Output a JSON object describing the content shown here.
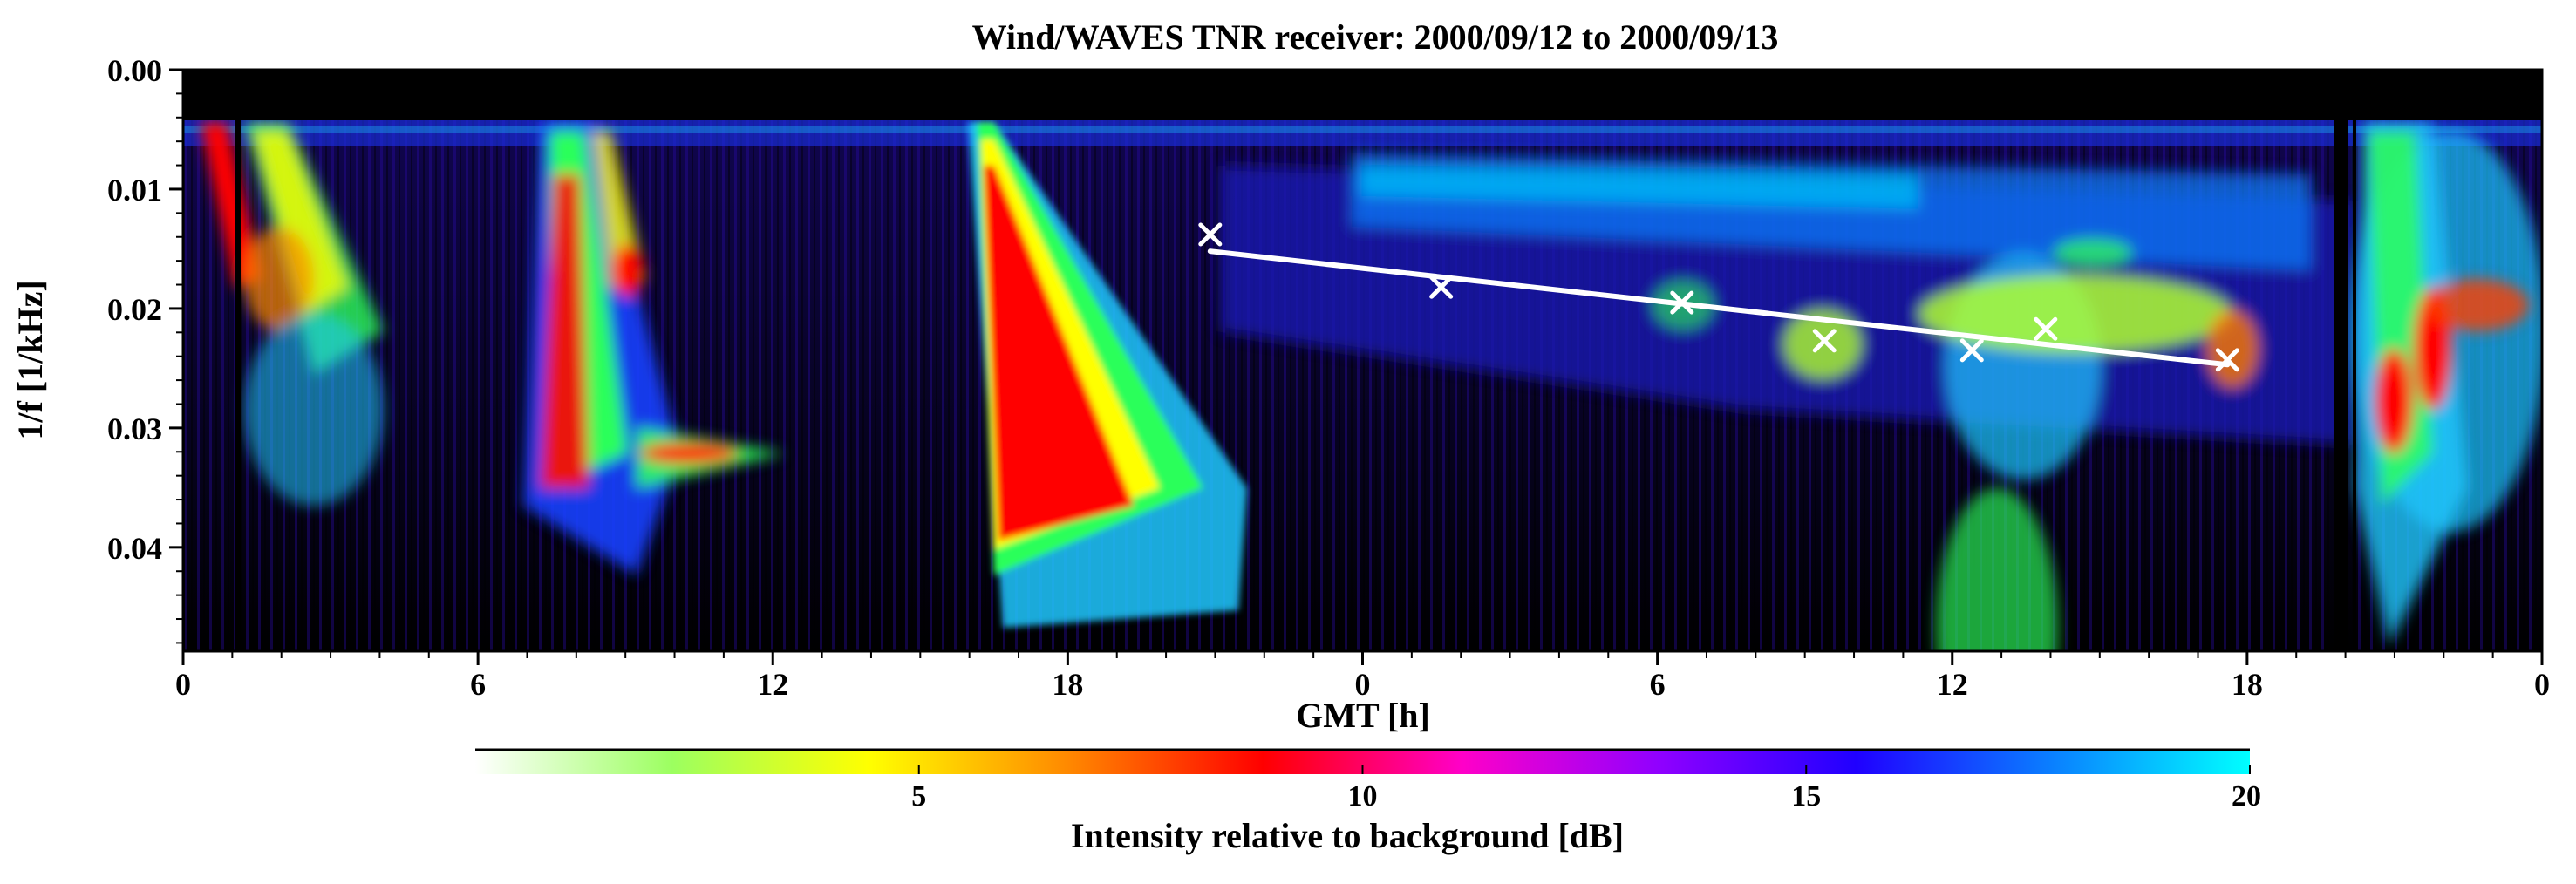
{
  "chart_data": {
    "type": "heatmap",
    "title": "Wind/WAVES TNR receiver: 2000/09/12 to 2000/09/13",
    "xlabel": "GMT [h]",
    "ylabel": "1/f [1/kHz]",
    "x_range_hours": [
      0,
      48
    ],
    "x_tick_values": [
      0,
      6,
      12,
      18,
      24,
      30,
      36,
      42,
      48
    ],
    "x_tick_labels": [
      "0",
      "6",
      "12",
      "18",
      "0",
      "6",
      "12",
      "18",
      "0"
    ],
    "ylim": [
      0.0,
      0.0487
    ],
    "y_inverted": true,
    "y_tick_values": [
      0.0,
      0.01,
      0.02,
      0.03,
      0.04
    ],
    "y_tick_labels": [
      "0.00",
      "0.01",
      "0.02",
      "0.03",
      "0.04"
    ],
    "colorbar": {
      "label": "Intensity relative to background [dB]",
      "range": [
        0,
        20
      ],
      "tick_values": [
        5,
        10,
        15,
        20
      ],
      "tick_labels": [
        "5",
        "10",
        "15",
        "20"
      ],
      "colors": [
        "#ffffff",
        "#9cff60",
        "#ffff00",
        "#ff8a00",
        "#ff0000",
        "#ff00c8",
        "#9000ff",
        "#2000ff",
        "#0a80ff",
        "#00ffff"
      ]
    },
    "markers": {
      "name": "tracked 1/f points",
      "symbol": "x",
      "color": "#ffffff",
      "points": [
        {
          "x": 20.9,
          "y": 0.0138
        },
        {
          "x": 25.6,
          "y": 0.0182
        },
        {
          "x": 30.5,
          "y": 0.0195
        },
        {
          "x": 33.4,
          "y": 0.0227
        },
        {
          "x": 36.4,
          "y": 0.0235
        },
        {
          "x": 37.9,
          "y": 0.0217
        },
        {
          "x": 41.6,
          "y": 0.0243
        }
      ]
    },
    "fit_line": {
      "color": "#ffffff",
      "x": [
        20.9,
        41.6
      ],
      "y": [
        0.0152,
        0.0247
      ]
    },
    "emission_features": [
      {
        "name": "burst 1",
        "x0": 0.6,
        "x1": 4.5,
        "y_top": 0.0045,
        "y_bottom": 0.045,
        "peak_db": 9
      },
      {
        "name": "burst 2",
        "x0": 7.2,
        "x1": 12.8,
        "y_top": 0.0045,
        "y_bottom": 0.047,
        "peak_db": 9
      },
      {
        "name": "burst 3",
        "x0": 16.0,
        "x1": 21.0,
        "y_top": 0.0045,
        "y_bottom": 0.047,
        "peak_db": 10
      },
      {
        "name": "drifting band",
        "x0": 20.5,
        "x1": 43.5,
        "y_top": 0.012,
        "y_bottom": 0.031,
        "peak_db": 8
      },
      {
        "name": "burst 4",
        "x0": 43.8,
        "x1": 46.0,
        "y_top": 0.0045,
        "y_bottom": 0.045,
        "peak_db": 10
      }
    ]
  }
}
